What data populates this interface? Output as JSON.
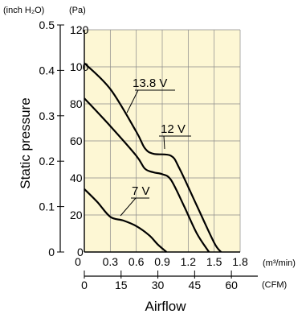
{
  "chart_data": {
    "type": "line",
    "plot_background": "#fdf7d4",
    "x_axis": {
      "label": "Airflow",
      "primary": {
        "unit": "(m³/min)",
        "min": 0,
        "max": 1.8,
        "ticks": [
          "0",
          "0.3",
          "0.6",
          "0.9",
          "1.2",
          "1.5",
          "1.8"
        ],
        "tick_values": [
          0,
          0.3,
          0.6,
          0.9,
          1.2,
          1.5,
          1.8
        ]
      },
      "secondary": {
        "unit": "(CFM)",
        "ticks": [
          "0",
          "15",
          "30",
          "45",
          "60"
        ],
        "tick_values": [
          0,
          15,
          30,
          45,
          60
        ]
      }
    },
    "y_axis": {
      "label": "Static pressure",
      "primary": {
        "unit": "(Pa)",
        "min": 0,
        "max": 120,
        "ticks": [
          "0",
          "20",
          "40",
          "60",
          "80",
          "100",
          "120"
        ],
        "tick_values": [
          0,
          20,
          40,
          60,
          80,
          100,
          120
        ]
      },
      "secondary": {
        "unit": "(inch H₂O)",
        "ticks": [
          "0",
          "0.1",
          "0.2",
          "0.3",
          "0.4",
          "0.5"
        ],
        "tick_values": [
          0,
          0.1,
          0.2,
          0.3,
          0.4,
          0.5
        ]
      }
    },
    "grid": true,
    "series": [
      {
        "name": "13.8 V",
        "points": [
          [
            0,
            102
          ],
          [
            0.3,
            88
          ],
          [
            0.6,
            65
          ],
          [
            0.7,
            56
          ],
          [
            0.8,
            53
          ],
          [
            1.0,
            52
          ],
          [
            1.1,
            45
          ],
          [
            1.3,
            25
          ],
          [
            1.5,
            5
          ],
          [
            1.58,
            0
          ]
        ]
      },
      {
        "name": "12 V",
        "points": [
          [
            0,
            83
          ],
          [
            0.3,
            68
          ],
          [
            0.6,
            52
          ],
          [
            0.7,
            45
          ],
          [
            0.8,
            43
          ],
          [
            0.9,
            42
          ],
          [
            1.0,
            39
          ],
          [
            1.15,
            25
          ],
          [
            1.3,
            10
          ],
          [
            1.44,
            0
          ]
        ]
      },
      {
        "name": "7 V",
        "points": [
          [
            0,
            34
          ],
          [
            0.15,
            27
          ],
          [
            0.3,
            19
          ],
          [
            0.45,
            17
          ],
          [
            0.6,
            14
          ],
          [
            0.75,
            9
          ],
          [
            0.85,
            4
          ],
          [
            0.95,
            0
          ]
        ]
      }
    ]
  }
}
